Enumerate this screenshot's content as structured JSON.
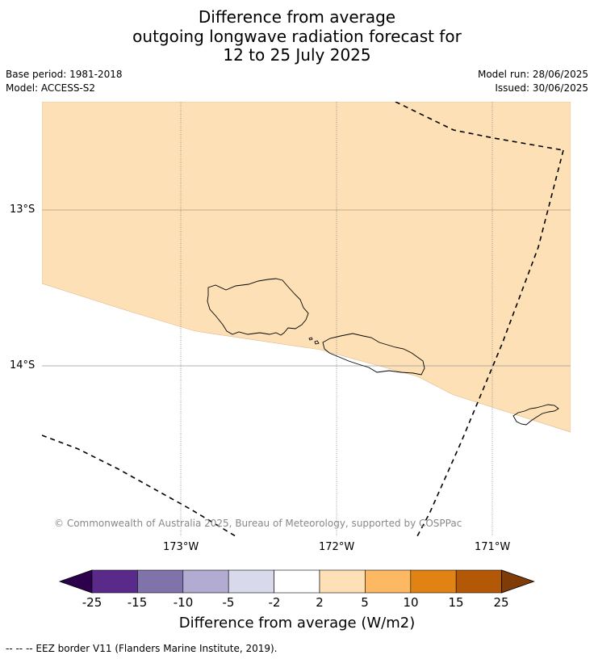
{
  "title": {
    "line1": "Difference from average",
    "line2": "outgoing longwave radiation forecast for",
    "line3": "12 to 25 July 2025"
  },
  "meta": {
    "base_period": "Base period: 1981-2018",
    "model": "Model: ACCESS-S2",
    "model_run": "Model run: 28/06/2025",
    "issued": "Issued: 30/06/2025"
  },
  "map": {
    "lat_labels": [
      "13°S",
      "14°S"
    ],
    "lon_labels": [
      "173°W",
      "172°W",
      "171°W"
    ],
    "anomaly_fill_color": "#fde0b6",
    "copyright": "© Commonwealth of Australia 2025, Bureau of Meteorology, supported by COSPPac"
  },
  "colorbar": {
    "ticks": [
      "-25",
      "-15",
      "-10",
      "-5",
      "-2",
      "2",
      "5",
      "10",
      "15",
      "25"
    ],
    "colors": [
      "#2d004b",
      "#5a2a8a",
      "#8073ac",
      "#b2abd2",
      "#d8daeb",
      "#ffffff",
      "#fee0b6",
      "#fdb863",
      "#e08214",
      "#b35806",
      "#7f3b08"
    ],
    "label": "Difference from average (W/m2)"
  },
  "legend": {
    "eez": "--  --  -- EEZ border V11 (Flanders Marine Institute, 2019)."
  }
}
